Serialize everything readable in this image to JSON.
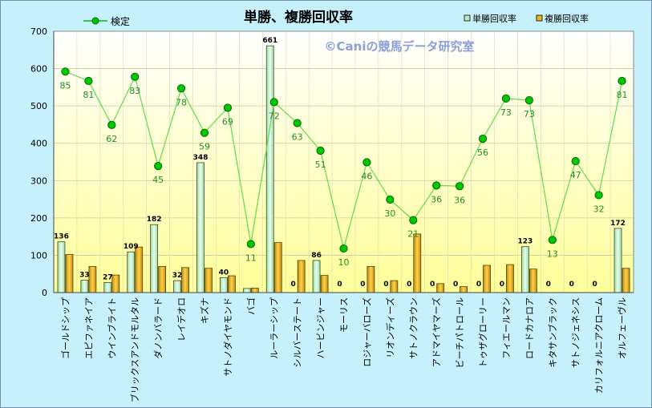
{
  "chart_data": {
    "type": "bar",
    "title": "単勝、複勝回収率",
    "watermark": "©Caniの競馬データ研究室",
    "ylim": [
      0,
      700
    ],
    "yticks": [
      "0",
      "100",
      "200",
      "300",
      "400",
      "500",
      "600",
      "700"
    ],
    "categories": [
      "ゴールドシップ",
      "エピファネイア",
      "ウインブライト",
      "ブリックスアンドモルタル",
      "ダノンバラード",
      "レイデオロ",
      "キズナ",
      "サトノダイヤモンド",
      "バゴ",
      "ルーラーシップ",
      "シルバーステート",
      "ハービンジャー",
      "モーリス",
      "ロジャーバローズ",
      "リオンディーズ",
      "サトノクラウン",
      "アドマイヤマーズ",
      "ビーチパトロール",
      "トゥザグローリー",
      "フィエールマン",
      "ロードカナロア",
      "キタサンブラック",
      "サトノジェネシス",
      "カリフォルニアクローム",
      "オルフェーヴル"
    ],
    "series": [
      {
        "name": "単勝回収率",
        "type": "bar",
        "color": "#bfe8bf",
        "values": [
          136,
          33,
          27,
          109,
          182,
          32,
          348,
          40,
          11,
          661,
          0,
          86,
          0,
          0,
          0,
          0,
          0,
          0,
          0,
          0,
          123,
          0,
          0,
          0,
          172
        ],
        "labels": [
          "136",
          "33",
          "27",
          "109",
          "182",
          "32",
          "348",
          "40",
          "",
          "661",
          "0",
          "86",
          "0",
          "0",
          "0",
          "0",
          "0",
          "0",
          "0",
          "0",
          "123",
          "0",
          "0",
          "0",
          "172"
        ]
      },
      {
        "name": "複勝回収率",
        "type": "bar",
        "color": "#e3b52a",
        "values": [
          102,
          70,
          47,
          122,
          70,
          67,
          65,
          45,
          12,
          134,
          86,
          46,
          0,
          70,
          32,
          157,
          24,
          16,
          73,
          75,
          63,
          0,
          0,
          0,
          65
        ]
      },
      {
        "name": "検定",
        "type": "line",
        "color": "#00c000",
        "values": [
          85,
          81,
          62,
          83,
          45,
          78,
          59,
          69,
          11,
          72,
          63,
          51,
          10,
          46,
          30,
          21,
          36,
          36,
          56,
          73,
          73,
          13,
          47,
          32,
          81
        ],
        "labels": [
          "85",
          "81",
          "62",
          "83",
          "45",
          "78",
          "59",
          "69",
          "11",
          "72",
          "63",
          "51",
          "10",
          "46",
          "30",
          "21",
          "36",
          "36",
          "56",
          "73",
          "73",
          "13",
          "47",
          "32",
          "81"
        ],
        "plot_y": [
          592,
          567,
          449,
          578,
          339,
          547,
          428,
          495,
          130,
          510,
          454,
          380,
          118,
          349,
          249,
          194,
          287,
          285,
          412,
          520,
          515,
          141,
          352,
          261,
          567
        ]
      }
    ],
    "legend": {
      "position": "top"
    },
    "grid": true
  }
}
